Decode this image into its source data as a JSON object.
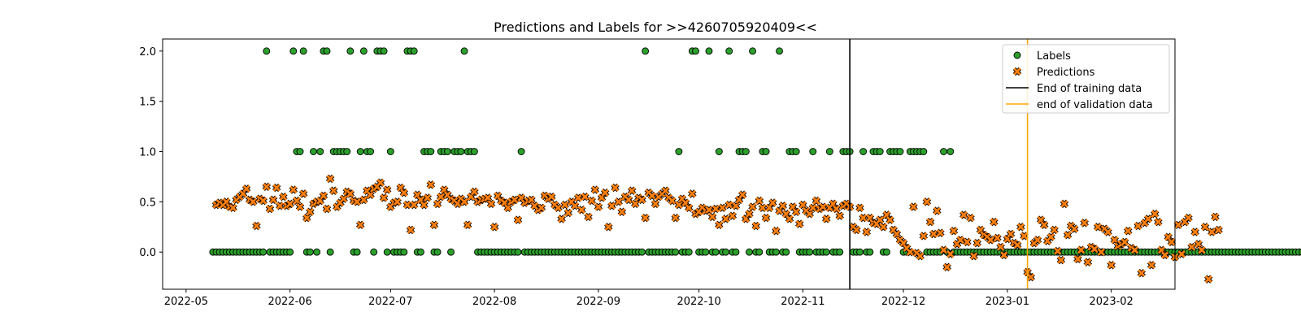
{
  "chart_data": {
    "type": "scatter",
    "title": "Predictions and Labels for >>4260705920409<<",
    "xlabel": "",
    "ylabel": "",
    "x_range": [
      "2022-04-24",
      "2023-02-20"
    ],
    "ylim": [
      -0.37,
      2.12
    ],
    "y_ticks": [
      "0.0",
      "0.5",
      "1.0",
      "1.5",
      "2.0"
    ],
    "x_ticks": [
      "2022-05",
      "2022-06",
      "2022-07",
      "2022-08",
      "2022-09",
      "2022-10",
      "2022-11",
      "2022-12",
      "2023-01",
      "2023-02"
    ],
    "grid": false,
    "legend_position": "top-right",
    "colors": {
      "labels": "#2ca02c",
      "predictions": "#ff7f0e",
      "training_line": "#000000",
      "validation_line": "#ffa500"
    },
    "series": [
      {
        "name": "Labels",
        "marker": "circle",
        "start_date": "2022-05-09",
        "values": [
          0,
          0,
          0,
          0,
          0,
          0,
          0,
          0,
          0,
          0,
          0,
          0,
          0,
          0,
          0,
          0,
          2,
          0,
          0,
          0,
          0,
          0,
          0,
          0,
          2,
          1,
          1,
          2,
          0,
          0,
          1,
          0,
          1,
          2,
          2,
          0,
          1,
          1,
          1,
          1,
          1,
          2,
          0,
          0,
          1,
          2,
          1,
          1,
          0,
          2,
          2,
          2,
          0,
          1,
          0,
          0,
          0,
          0,
          2,
          2,
          2,
          0,
          0,
          1,
          1,
          1,
          0,
          0,
          1,
          1,
          1,
          0,
          1,
          1,
          1,
          2,
          1,
          1,
          1,
          0,
          0,
          0,
          0,
          0,
          0,
          0,
          0,
          0,
          0,
          0,
          0,
          0,
          1,
          0,
          0,
          0,
          0,
          0,
          0,
          0,
          0,
          0,
          0,
          0,
          0,
          0,
          0,
          0,
          0,
          0,
          0,
          0,
          0,
          0,
          0,
          0,
          0,
          0,
          0,
          0,
          0,
          0,
          0,
          0,
          0,
          0,
          0,
          0,
          0,
          2,
          0,
          0,
          0,
          0,
          0,
          0,
          0,
          0,
          0,
          1,
          0,
          0,
          0,
          2,
          2,
          0,
          0,
          0,
          2,
          0,
          0,
          1,
          0,
          0,
          2,
          0,
          0,
          1,
          1,
          1,
          0,
          2,
          0,
          0,
          1,
          1,
          0,
          0,
          0,
          2,
          0,
          0,
          1,
          1,
          1,
          0,
          0,
          0,
          0,
          1,
          0,
          0,
          0,
          0,
          1,
          0,
          0,
          0,
          1,
          1,
          1,
          0,
          0,
          0,
          1,
          0,
          0,
          1,
          1,
          1,
          0,
          0,
          1,
          1,
          1,
          1,
          0,
          0,
          1,
          1,
          1,
          1,
          1,
          0,
          0,
          0,
          0,
          0,
          1,
          0,
          1,
          0,
          0,
          0,
          0,
          0,
          0,
          0,
          0,
          0,
          0,
          0,
          0,
          0,
          0,
          0,
          0,
          0,
          0,
          0,
          0,
          0,
          0,
          0,
          0,
          0,
          0,
          0,
          0,
          0,
          0,
          0,
          0,
          0,
          0,
          0,
          0,
          0,
          0,
          0,
          0,
          0,
          0,
          0,
          0,
          0,
          0,
          0,
          0,
          0,
          0,
          0,
          0,
          0,
          0,
          0,
          0,
          0,
          0,
          0,
          0,
          0,
          0,
          0,
          0,
          0,
          0,
          0,
          0,
          0,
          0,
          0,
          0,
          0,
          0,
          0,
          0,
          0,
          0,
          0,
          0,
          0,
          0,
          0,
          0,
          0,
          0,
          0,
          0,
          0,
          0,
          0,
          0,
          0,
          0,
          0,
          0,
          0,
          0,
          0,
          0,
          0,
          0,
          0,
          0,
          0,
          0,
          0,
          0,
          0,
          0,
          0,
          0,
          0,
          0,
          0,
          0,
          0,
          0,
          0,
          0
        ]
      },
      {
        "name": "Predictions",
        "marker": "x",
        "start_date": "2022-05-10",
        "values": [
          0.47,
          0.49,
          0.47,
          0.5,
          0.45,
          0.44,
          0.52,
          0.55,
          0.58,
          0.63,
          0.52,
          0.5,
          0.26,
          0.53,
          0.51,
          0.65,
          0.43,
          0.52,
          0.64,
          0.46,
          0.55,
          0.46,
          0.48,
          0.62,
          0.51,
          0.45,
          0.58,
          0.34,
          0.4,
          0.48,
          0.5,
          0.51,
          0.56,
          0.43,
          0.73,
          0.61,
          0.45,
          0.49,
          0.53,
          0.6,
          0.58,
          0.51,
          0.5,
          0.27,
          0.52,
          0.61,
          0.57,
          0.63,
          0.65,
          0.69,
          0.54,
          0.62,
          0.45,
          0.49,
          0.5,
          0.64,
          0.59,
          0.47,
          0.22,
          0.47,
          0.57,
          0.52,
          0.47,
          0.54,
          0.67,
          0.27,
          0.48,
          0.55,
          0.62,
          0.57,
          0.53,
          0.51,
          0.48,
          0.53,
          0.5,
          0.27,
          0.55,
          0.6,
          0.5,
          0.52,
          0.53,
          0.54,
          0.48,
          0.25,
          0.56,
          0.51,
          0.49,
          0.44,
          0.5,
          0.52,
          0.32,
          0.54,
          0.49,
          0.51,
          0.52,
          0.46,
          0.42,
          0.44,
          0.56,
          0.53,
          0.55,
          0.47,
          0.44,
          0.33,
          0.47,
          0.39,
          0.5,
          0.46,
          0.54,
          0.42,
          0.55,
          0.35,
          0.51,
          0.62,
          0.45,
          0.54,
          0.59,
          0.25,
          0.46,
          0.64,
          0.5,
          0.4,
          0.55,
          0.52,
          0.61,
          0.48,
          0.54,
          0.52,
          0.34,
          0.59,
          0.56,
          0.48,
          0.55,
          0.58,
          0.61,
          0.54,
          0.51,
          0.34,
          0.47,
          0.53,
          0.49,
          0.44,
          0.58,
          0.38,
          0.4,
          0.44,
          0.41,
          0.42,
          0.35,
          0.43,
          0.27,
          0.44,
          0.33,
          0.47,
          0.36,
          0.46,
          0.52,
          0.57,
          0.33,
          0.38,
          0.45,
          0.26,
          0.51,
          0.44,
          0.34,
          0.44,
          0.49,
          0.21,
          0.41,
          0.46,
          0.38,
          0.33,
          0.45,
          0.4,
          0.28,
          0.47,
          0.41,
          0.38,
          0.44,
          0.51,
          0.43,
          0.45,
          0.33,
          0.44,
          0.48,
          0.43,
          0.36,
          0.46,
          0.48,
          0.45,
          0.25,
          0.22,
          0.44,
          0.34,
          0.2,
          0.34,
          0.29,
          0.28,
          0.32,
          0.25,
          0.37,
          0.32,
          0.22,
          0.18,
          0.12,
          0.09,
          0.04,
          0.0,
          0.45,
          -0.01,
          -0.04,
          0.16,
          0.5,
          0.3,
          0.18,
          0.41,
          0.19,
          0.02,
          -0.15,
          -0.02,
          0.21,
          0.08,
          0.12,
          0.37,
          0.1,
          0.34,
          -0.04,
          0.09,
          0.22,
          0.17,
          0.15,
          0.12,
          0.3,
          0.14,
          0.05,
          -0.03,
          0.13,
          0.18,
          0.09,
          0.07,
          0.25,
          0.16,
          -0.2,
          -0.25,
          0.09,
          0.12,
          0.32,
          0.27,
          0.11,
          0.15,
          0.22,
          0.01,
          -0.08,
          0.48,
          0.17,
          0.26,
          0.23,
          -0.07,
          0.02,
          0.29,
          -0.1,
          0.05,
          0.03,
          0.25,
          0.0,
          0.23,
          0.2,
          -0.13,
          0.12,
          0.06,
          0.08,
          0.1,
          0.21,
          0.04,
          0.02,
          0.26,
          -0.21,
          0.29,
          0.33,
          -0.13,
          0.38,
          0.3,
          0.02,
          -0.03,
          0.15,
          0.1,
          -0.05,
          0.27,
          -0.02,
          0.3,
          0.34,
          0.05,
          0.2,
          0.08,
          0.02,
          0.25,
          -0.27,
          0.2,
          0.35,
          0.22
        ]
      },
      {
        "name": "End of training data",
        "type": "vline",
        "x": "2022-11-15"
      },
      {
        "name": "end of validation data",
        "type": "vline",
        "x": "2023-01-07"
      }
    ]
  }
}
